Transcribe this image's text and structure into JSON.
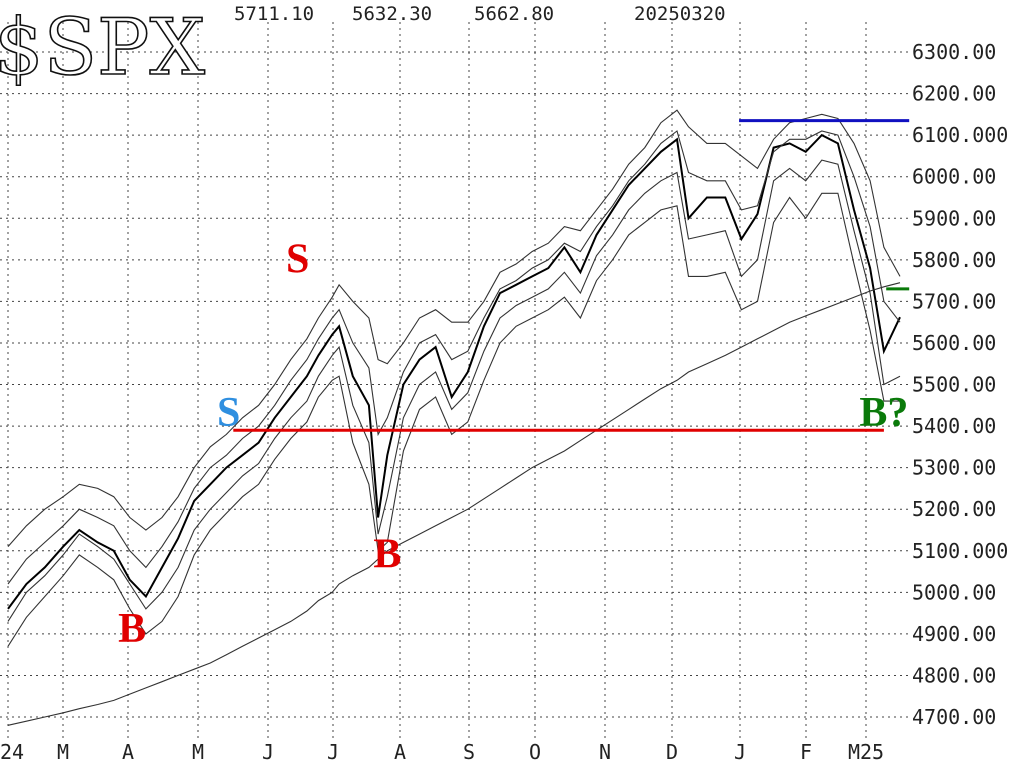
{
  "chart_data": {
    "type": "line",
    "title": "$SPX",
    "header": {
      "high": "5711.10",
      "low": "5632.30",
      "close": "5662.80",
      "date": "20250320"
    },
    "y_ticks": [
      "6300.00",
      "6200.00",
      "6100.000",
      "6000.00",
      "5900.00",
      "5800.00",
      "5700.00",
      "5600.00",
      "5500.00",
      "5400.00",
      "5300.00",
      "5200.00",
      "5100.000",
      "5000.00",
      "4900.00",
      "4800.00",
      "4700.00"
    ],
    "x_ticks": [
      "24",
      "M",
      "A",
      "M",
      "J",
      "J",
      "A",
      "S",
      "O",
      "N",
      "D",
      "J",
      "F",
      "M25"
    ],
    "ylim": [
      4700,
      6300
    ],
    "grid": true,
    "x": [
      "2024-02-26",
      "2024-03-05",
      "2024-03-13",
      "2024-03-21",
      "2024-03-28",
      "2024-04-05",
      "2024-04-12",
      "2024-04-19",
      "2024-04-26",
      "2024-05-03",
      "2024-05-10",
      "2024-05-17",
      "2024-05-24",
      "2024-05-31",
      "2024-06-07",
      "2024-06-14",
      "2024-06-21",
      "2024-06-28",
      "2024-07-05",
      "2024-07-10",
      "2024-07-16",
      "2024-07-19",
      "2024-07-25",
      "2024-08-01",
      "2024-08-05",
      "2024-08-09",
      "2024-08-16",
      "2024-08-23",
      "2024-08-30",
      "2024-09-06",
      "2024-09-13",
      "2024-09-20",
      "2024-09-27",
      "2024-10-04",
      "2024-10-11",
      "2024-10-18",
      "2024-10-25",
      "2024-11-01",
      "2024-11-08",
      "2024-11-15",
      "2024-11-22",
      "2024-11-29",
      "2024-12-06",
      "2024-12-13",
      "2024-12-18",
      "2024-12-26",
      "2025-01-03",
      "2025-01-10",
      "2025-01-17",
      "2025-01-24",
      "2025-01-31",
      "2025-02-07",
      "2025-02-14",
      "2025-02-21",
      "2025-02-28",
      "2025-03-07",
      "2025-03-13",
      "2025-03-20"
    ],
    "series": [
      {
        "values": [
          4960,
          5020,
          5060,
          5110,
          5150,
          5120,
          5100,
          5030,
          4990,
          5060,
          5130,
          5220,
          5260,
          5300,
          5330,
          5360,
          5420,
          5470,
          5520,
          5570,
          5620,
          5640,
          5520,
          5450,
          5180,
          5330,
          5500,
          5560,
          5590,
          5470,
          5530,
          5640,
          5720,
          5740,
          5760,
          5780,
          5830,
          5770,
          5860,
          5920,
          5980,
          6020,
          6060,
          6090,
          5900,
          5950,
          5950,
          5850,
          5910,
          6070,
          6080,
          6060,
          6100,
          6080,
          5920,
          5780,
          5580,
          5662
        ]
      },
      {
        "values": [
          5020,
          5080,
          5120,
          5160,
          5200,
          5180,
          5160,
          5100,
          5060,
          5110,
          5170,
          5250,
          5300,
          5330,
          5370,
          5400,
          5450,
          5510,
          5560,
          5610,
          5660,
          5680,
          5600,
          5540,
          5380,
          5420,
          5530,
          5600,
          5620,
          5560,
          5580,
          5660,
          5730,
          5750,
          5780,
          5800,
          5840,
          5820,
          5880,
          5930,
          5990,
          6030,
          6080,
          6110,
          6010,
          5990,
          5990,
          5920,
          5930,
          6060,
          6090,
          6090,
          6110,
          6100,
          6000,
          5880,
          5700,
          5650
        ]
      },
      {
        "values": [
          5110,
          5160,
          5200,
          5230,
          5260,
          5250,
          5230,
          5180,
          5150,
          5180,
          5230,
          5300,
          5350,
          5380,
          5420,
          5450,
          5500,
          5560,
          5610,
          5660,
          5710,
          5740,
          5700,
          5660,
          5560,
          5550,
          5600,
          5660,
          5680,
          5650,
          5650,
          5700,
          5770,
          5790,
          5820,
          5840,
          5880,
          5870,
          5920,
          5970,
          6030,
          6070,
          6130,
          6160,
          6120,
          6080,
          6080,
          6050,
          6020,
          6090,
          6130,
          6140,
          6150,
          6140,
          6080,
          5990,
          5830,
          5760
        ]
      },
      {
        "values": [
          4930,
          5000,
          5040,
          5090,
          5140,
          5110,
          5080,
          5020,
          4960,
          5000,
          5060,
          5150,
          5200,
          5240,
          5280,
          5310,
          5370,
          5420,
          5460,
          5520,
          5570,
          5590,
          5450,
          5360,
          5140,
          5230,
          5420,
          5500,
          5530,
          5440,
          5480,
          5580,
          5660,
          5690,
          5710,
          5730,
          5770,
          5720,
          5810,
          5860,
          5920,
          5960,
          5990,
          6010,
          5850,
          5860,
          5870,
          5760,
          5800,
          5990,
          6020,
          5990,
          6040,
          6030,
          5870,
          5720,
          5500,
          5520
        ]
      },
      {
        "values": [
          4870,
          4940,
          4990,
          5040,
          5090,
          5060,
          5030,
          4960,
          4900,
          4930,
          4990,
          5090,
          5150,
          5190,
          5230,
          5260,
          5320,
          5370,
          5410,
          5470,
          5510,
          5520,
          5360,
          5260,
          5100,
          5120,
          5340,
          5440,
          5470,
          5380,
          5410,
          5510,
          5600,
          5640,
          5660,
          5680,
          5710,
          5660,
          5750,
          5800,
          5860,
          5890,
          5920,
          5930,
          5760,
          5760,
          5770,
          5680,
          5700,
          5890,
          5950,
          5900,
          5960,
          5960,
          5790,
          5630,
          5460,
          5460
        ]
      },
      {
        "values": [
          4680,
          4690,
          4700,
          4710,
          4720,
          4730,
          4740,
          4755,
          4770,
          4785,
          4800,
          4815,
          4830,
          4850,
          4870,
          4890,
          4910,
          4930,
          4955,
          4980,
          5000,
          5020,
          5040,
          5060,
          5080,
          5100,
          5120,
          5140,
          5160,
          5180,
          5200,
          5225,
          5250,
          5275,
          5300,
          5320,
          5340,
          5365,
          5390,
          5415,
          5440,
          5465,
          5490,
          5510,
          5530,
          5550,
          5570,
          5590,
          5610,
          5630,
          5650,
          5665,
          5680,
          5695,
          5710,
          5725,
          5735,
          5745
        ]
      }
    ],
    "annotations": [
      {
        "text": "S",
        "color": "#e00000",
        "x": "2024-07-01",
        "y": 5770
      },
      {
        "text": "S",
        "color": "#2f8fe0",
        "x": "2024-06-01",
        "y": 5400
      },
      {
        "text": "B",
        "color": "#e00000",
        "x": "2024-04-20",
        "y": 4880
      },
      {
        "text": "B",
        "color": "#e00000",
        "x": "2024-08-09",
        "y": 5060
      },
      {
        "text": "B?",
        "color": "#0a7a0a",
        "x": "2025-03-13",
        "y": 5400
      }
    ],
    "hlines": [
      {
        "y": 6135,
        "from": "2025-01-09",
        "to": "2025-03-24",
        "color": "#1010c0"
      },
      {
        "y": 5390,
        "from": "2024-06-03",
        "to": "2025-03-13",
        "color": "#e00000"
      },
      {
        "y": 5730,
        "from": "2025-03-14",
        "to": "2025-03-24",
        "color": "#0a7a0a"
      }
    ]
  }
}
